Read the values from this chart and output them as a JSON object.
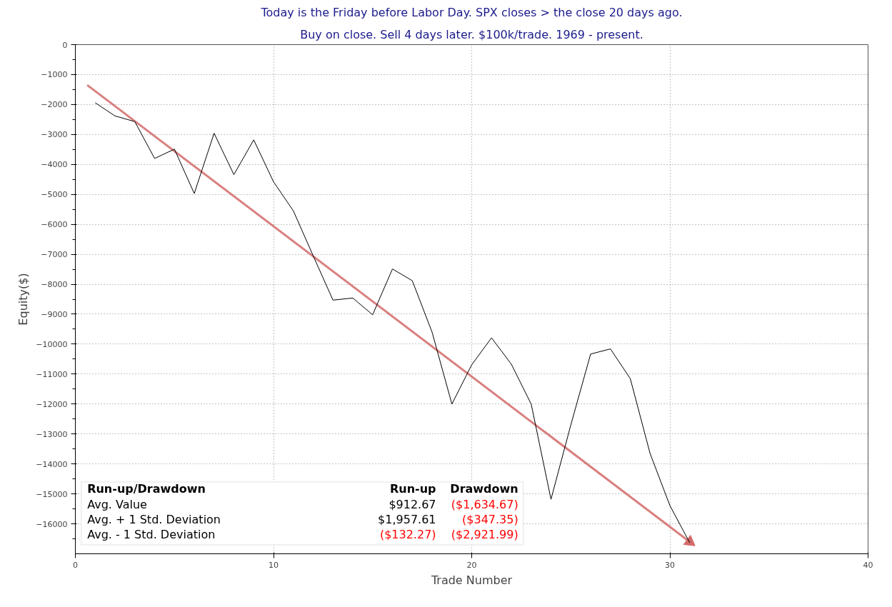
{
  "chart_data": {
    "type": "line",
    "title": "Today is the Friday before Labor Day. SPX closes > the close 20 days ago.",
    "subtitle": "Buy on close. Sell 4 days later. $100k/trade. 1969 - present.",
    "xlabel": "Trade Number",
    "ylabel": "Equity($)",
    "x": [
      1,
      2,
      3,
      4,
      5,
      6,
      7,
      8,
      9,
      10,
      11,
      12,
      13,
      14,
      15,
      16,
      17,
      18,
      19,
      20,
      21,
      22,
      23,
      24,
      25,
      26,
      27,
      28,
      29,
      30,
      31
    ],
    "series": [
      {
        "color": "#000000",
        "values": [
          -1940,
          -2380,
          -2570,
          -3800,
          -3490,
          -4970,
          -2960,
          -4340,
          -3180,
          -4580,
          -5550,
          -7050,
          -8530,
          -8460,
          -9020,
          -7490,
          -7880,
          -9600,
          -12000,
          -10690,
          -9790,
          -10670,
          -12000,
          -15180,
          -12700,
          -10330,
          -10160,
          -11150,
          -13650,
          -15390,
          -16630
        ]
      },
      {
        "type": "line",
        "color": "#d46a6a",
        "x": [
          0.6,
          31
        ],
        "values": [
          -1350,
          -16600
        ]
      }
    ],
    "xlim": [
      0,
      40
    ],
    "xticks": [
      0,
      10,
      20,
      30,
      40
    ],
    "ylim": [
      -17000,
      0
    ],
    "yticks": [
      0,
      -1000,
      -2000,
      -3000,
      -4000,
      -5000,
      -6000,
      -7000,
      -8000,
      -9000,
      -10000,
      -11000,
      -12000,
      -13000,
      -14000,
      -15000,
      -16000
    ],
    "grid": true,
    "line_style": "solid",
    "annotations": [
      "Run-up/Drawdown",
      "Run-up",
      "Drawdown",
      "Avg. Value",
      "$912.67",
      "($1,634.67)",
      "Avg. + 1 Std. Deviation",
      "$1,957.61",
      "($347.35)",
      "Avg. - 1 Std. Deviation",
      "($132.27)",
      "($2,921.99)"
    ]
  }
}
